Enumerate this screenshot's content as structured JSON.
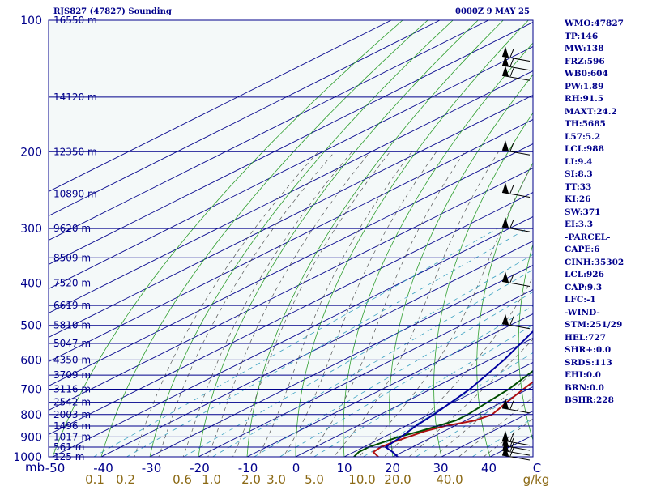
{
  "header": {
    "station": "RJS827 (47827) Sounding",
    "time": "0000Z  9 MAY 25"
  },
  "indices": [
    "WMO:47827",
    "TP:146",
    "MW:138",
    "FRZ:596",
    "WB0:604",
    "PW:1.89",
    "RH:91.5",
    "MAXT:24.2",
    "TH:5685",
    "L57:5.2",
    "LCL:988",
    "LI:9.4",
    "SI:8.3",
    "TT:33",
    "KI:26",
    "SW:371",
    "EI:3.3",
    "-PARCEL-",
    "CAPE:6",
    "CINH:35302",
    "LCL:926",
    "CAP:9.3",
    "LFC:-1",
    "-WIND-",
    "STM:251/29",
    "HEL:727",
    "SHR+:0.0",
    "SRDS:113",
    "EHI:0.0",
    "BRN:0.0",
    "BSHR:228"
  ],
  "colors": {
    "background": "#f4f9f9",
    "isobar": "#00008b",
    "isotherm": "#00008b",
    "dry_adiabat": "#2e9e2e",
    "moist_adiabat": "#555555",
    "mixing_ratio": "#3aa0c0",
    "temperature": "#b01010",
    "dewpoint": "#004d00",
    "parcel": "#0000a0",
    "wind_barb": "#000000",
    "mixing_label": "#8b6914"
  },
  "chart_data": {
    "type": "skew-t",
    "title": "RJS827 (47827) Sounding",
    "xlabel": "",
    "ylabel": "mb",
    "pressure_ticks": [
      100,
      200,
      300,
      400,
      500,
      600,
      700,
      800,
      900,
      1000
    ],
    "temperature_ticks": [
      "-50",
      "-40",
      "-30",
      "-20",
      "-10",
      "0",
      "10",
      "20",
      "30",
      "40",
      "C"
    ],
    "mixing_ratio_labels": [
      "0.1",
      "0.2",
      "0.6",
      "1.0",
      "2.0",
      "3.0",
      "5.0",
      "10.0",
      "20.0",
      "40.0",
      "g/kg"
    ],
    "height_labels": [
      {
        "p": 100,
        "h": "16550 m"
      },
      {
        "p": 150,
        "h": "14120 m"
      },
      {
        "p": 200,
        "h": "12350 m"
      },
      {
        "p": 250,
        "h": "10890 m"
      },
      {
        "p": 300,
        "h": "9620 m"
      },
      {
        "p": 350,
        "h": "8509 m"
      },
      {
        "p": 400,
        "h": "7520 m"
      },
      {
        "p": 450,
        "h": "6619 m"
      },
      {
        "p": 500,
        "h": "5810 m"
      },
      {
        "p": 550,
        "h": "5047 m"
      },
      {
        "p": 600,
        "h": "4350 m"
      },
      {
        "p": 650,
        "h": "3709 m"
      },
      {
        "p": 700,
        "h": "3116 m"
      },
      {
        "p": 750,
        "h": "2542 m"
      },
      {
        "p": 800,
        "h": "2003 m"
      },
      {
        "p": 850,
        "h": "1496 m"
      },
      {
        "p": 900,
        "h": "1017 m"
      },
      {
        "p": 950,
        "h": "561 m"
      },
      {
        "p": 1000,
        "h": "125 m"
      }
    ],
    "series": [
      {
        "key": "temperature",
        "points": [
          [
            1000,
            17
          ],
          [
            975,
            14
          ],
          [
            950,
            13.5
          ],
          [
            925,
            14
          ],
          [
            900,
            15
          ],
          [
            875,
            16
          ],
          [
            850,
            18
          ],
          [
            825,
            22
          ],
          [
            800,
            23
          ],
          [
            750,
            21
          ],
          [
            700,
            19
          ],
          [
            600,
            15
          ],
          [
            500,
            9
          ],
          [
            400,
            -1
          ],
          [
            350,
            -8
          ],
          [
            300,
            -16
          ],
          [
            250,
            -27
          ],
          [
            200,
            -40
          ],
          [
            175,
            -48
          ],
          [
            150,
            -58
          ],
          [
            125,
            -57
          ],
          [
            115,
            -53
          ],
          [
            110,
            -45
          ],
          [
            105,
            -37
          ],
          [
            100,
            -37
          ]
        ]
      },
      {
        "key": "dewpoint",
        "points": [
          [
            1000,
            12
          ],
          [
            975,
            11
          ],
          [
            950,
            11
          ],
          [
            925,
            12
          ],
          [
            900,
            13
          ],
          [
            875,
            15
          ],
          [
            850,
            16.5
          ],
          [
            825,
            18
          ],
          [
            800,
            18
          ],
          [
            750,
            17
          ],
          [
            700,
            16
          ],
          [
            600,
            12
          ],
          [
            500,
            7
          ],
          [
            400,
            -3
          ],
          [
            350,
            -11
          ],
          [
            300,
            -21
          ],
          [
            260,
            -31
          ]
        ]
      },
      {
        "key": "parcel",
        "points": [
          [
            1000,
            21
          ],
          [
            975,
            18
          ],
          [
            950,
            14.5
          ],
          [
            925,
            14
          ],
          [
            900,
            13.5
          ],
          [
            850,
            12
          ],
          [
            800,
            11
          ],
          [
            700,
            8
          ],
          [
            600,
            3
          ],
          [
            500,
            -4
          ],
          [
            400,
            -14
          ],
          [
            300,
            -30
          ],
          [
            250,
            -41
          ],
          [
            200,
            -54
          ],
          [
            150,
            -70
          ],
          [
            125,
            -80
          ],
          [
            110,
            -86
          ]
        ]
      }
    ],
    "wind_barbs": [
      {
        "p": 1000
      },
      {
        "p": 975
      },
      {
        "p": 950
      },
      {
        "p": 925
      },
      {
        "p": 780
      },
      {
        "p": 500
      },
      {
        "p": 400
      },
      {
        "p": 300
      },
      {
        "p": 250
      },
      {
        "p": 200
      },
      {
        "p": 135
      },
      {
        "p": 128
      },
      {
        "p": 122
      }
    ],
    "ylim": [
      1000,
      100
    ],
    "xlim": [
      -50,
      50
    ]
  }
}
